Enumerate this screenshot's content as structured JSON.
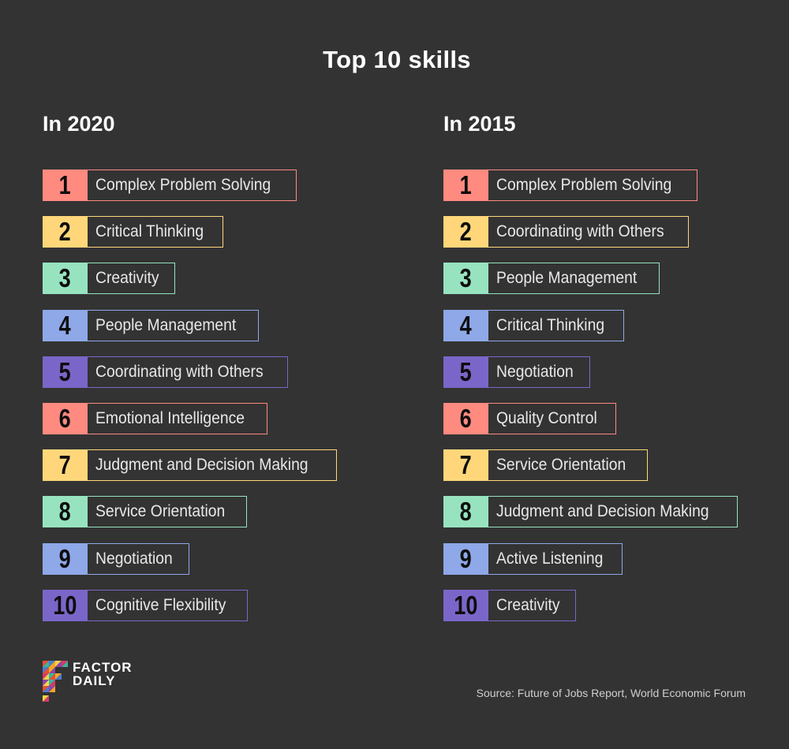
{
  "title": "Top 10 skills",
  "palette": [
    "#ff8a80",
    "#ffd77a",
    "#97e3c0",
    "#8ea8e8",
    "#7a66c8"
  ],
  "columns": [
    {
      "heading": "In 2020",
      "items": [
        {
          "rank": "1",
          "label": "Complex Problem Solving"
        },
        {
          "rank": "2",
          "label": "Critical Thinking"
        },
        {
          "rank": "3",
          "label": "Creativity"
        },
        {
          "rank": "4",
          "label": "People Management"
        },
        {
          "rank": "5",
          "label": "Coordinating with Others"
        },
        {
          "rank": "6",
          "label": "Emotional Intelligence"
        },
        {
          "rank": "7",
          "label": "Judgment and Decision Making"
        },
        {
          "rank": "8",
          "label": "Service Orientation"
        },
        {
          "rank": "9",
          "label": "Negotiation"
        },
        {
          "rank": "10",
          "label": "Cognitive Flexibility"
        }
      ]
    },
    {
      "heading": "In 2015",
      "items": [
        {
          "rank": "1",
          "label": "Complex Problem Solving"
        },
        {
          "rank": "2",
          "label": "Coordinating with Others"
        },
        {
          "rank": "3",
          "label": "People Management"
        },
        {
          "rank": "4",
          "label": "Critical Thinking"
        },
        {
          "rank": "5",
          "label": "Negotiation"
        },
        {
          "rank": "6",
          "label": "Quality Control"
        },
        {
          "rank": "7",
          "label": "Service Orientation"
        },
        {
          "rank": "8",
          "label": "Judgment and Decision Making"
        },
        {
          "rank": "9",
          "label": "Active Listening"
        },
        {
          "rank": "10",
          "label": "Creativity"
        }
      ]
    }
  ],
  "logo": {
    "line1": "FACTOR",
    "line2": "DAILY",
    "colors": [
      "#e94f37",
      "#f6a623",
      "#f3d34a",
      "#3fb39b",
      "#4b7bd3",
      "#8e44ad",
      "#d63a6a"
    ]
  },
  "source": "Source: Future of Jobs Report, World Economic Forum"
}
